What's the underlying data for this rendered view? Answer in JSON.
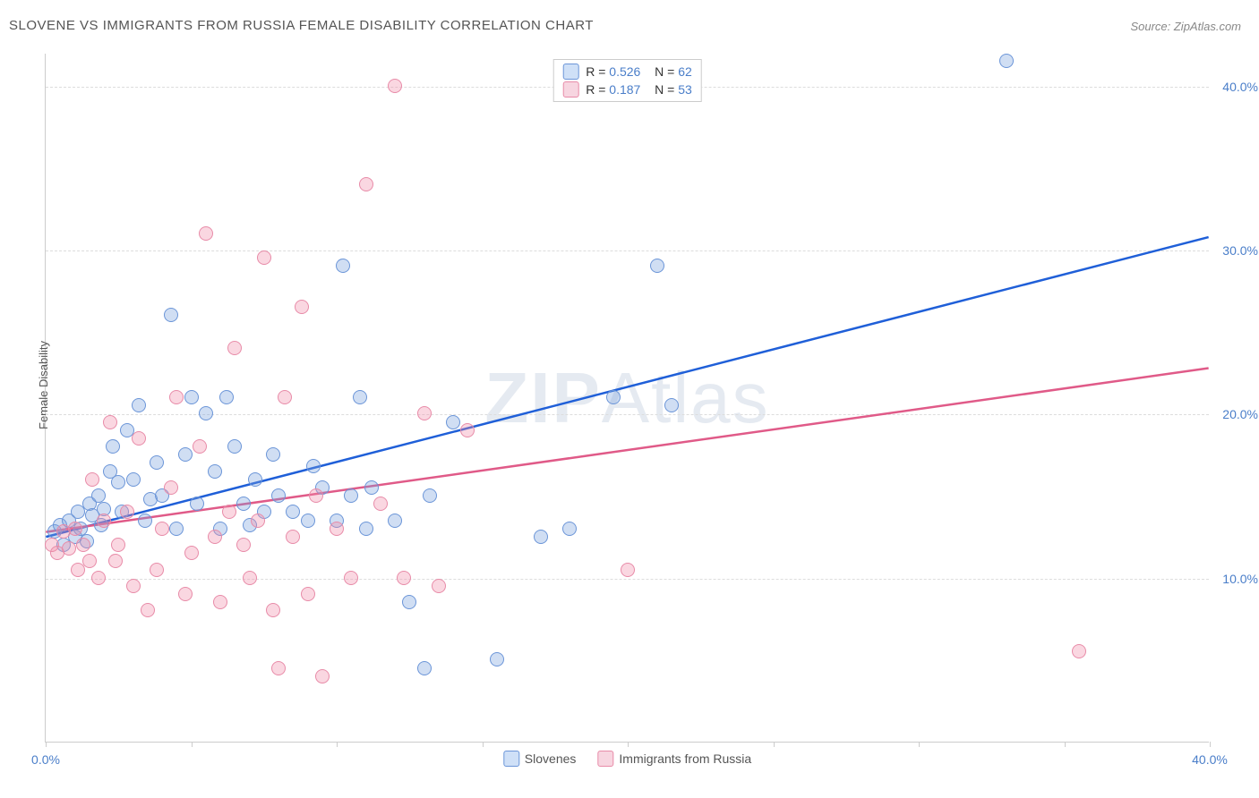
{
  "title": "SLOVENE VS IMMIGRANTS FROM RUSSIA FEMALE DISABILITY CORRELATION CHART",
  "source": "Source: ZipAtlas.com",
  "watermark": "ZIPAtlas",
  "y_axis": {
    "label": "Female Disability"
  },
  "chart": {
    "type": "scatter",
    "xlim": [
      0,
      40
    ],
    "ylim": [
      0,
      42
    ],
    "x_ticks": [
      0,
      5,
      10,
      15,
      20,
      25,
      30,
      35,
      40
    ],
    "x_tick_labels": {
      "0": "0.0%",
      "40": "40.0%"
    },
    "y_gridlines": [
      10,
      20,
      30,
      40
    ],
    "y_tick_labels": {
      "10": "10.0%",
      "20": "20.0%",
      "30": "30.0%",
      "40": "40.0%"
    },
    "background_color": "#ffffff",
    "grid_color": "#dddddd",
    "axis_color": "#cccccc",
    "tick_label_color": "#4a7ec9",
    "marker_radius": 8,
    "trend_line_width": 2.5
  },
  "series": [
    {
      "name": "Slovenes",
      "fill_color": "rgba(120,160,220,0.35)",
      "stroke_color": "#6b95d8",
      "swatch_fill": "#cfe0f7",
      "swatch_border": "#6b95d8",
      "trend_color": "#1f5fd8",
      "R": "0.526",
      "N": "62",
      "trend": {
        "x1": 0,
        "y1": 12.5,
        "x2": 40,
        "y2": 30.8
      },
      "points": [
        [
          0.3,
          12.8
        ],
        [
          0.5,
          13.2
        ],
        [
          0.6,
          12.0
        ],
        [
          0.8,
          13.5
        ],
        [
          1.0,
          12.5
        ],
        [
          1.1,
          14.0
        ],
        [
          1.2,
          13.0
        ],
        [
          1.4,
          12.2
        ],
        [
          1.5,
          14.5
        ],
        [
          1.6,
          13.8
        ],
        [
          1.8,
          15.0
        ],
        [
          1.9,
          13.2
        ],
        [
          2.0,
          14.2
        ],
        [
          2.2,
          16.5
        ],
        [
          2.3,
          18.0
        ],
        [
          2.5,
          15.8
        ],
        [
          2.6,
          14.0
        ],
        [
          2.8,
          19.0
        ],
        [
          3.0,
          16.0
        ],
        [
          3.2,
          20.5
        ],
        [
          3.4,
          13.5
        ],
        [
          3.6,
          14.8
        ],
        [
          3.8,
          17.0
        ],
        [
          4.0,
          15.0
        ],
        [
          4.3,
          26.0
        ],
        [
          4.5,
          13.0
        ],
        [
          4.8,
          17.5
        ],
        [
          5.0,
          21.0
        ],
        [
          5.2,
          14.5
        ],
        [
          5.5,
          20.0
        ],
        [
          5.8,
          16.5
        ],
        [
          6.0,
          13.0
        ],
        [
          6.2,
          21.0
        ],
        [
          6.5,
          18.0
        ],
        [
          7.0,
          13.2
        ],
        [
          7.2,
          16.0
        ],
        [
          7.5,
          14.0
        ],
        [
          7.8,
          17.5
        ],
        [
          8.0,
          15.0
        ],
        [
          8.5,
          14.0
        ],
        [
          9.0,
          13.5
        ],
        [
          9.2,
          16.8
        ],
        [
          9.5,
          15.5
        ],
        [
          10.0,
          13.5
        ],
        [
          10.2,
          29.0
        ],
        [
          10.5,
          15.0
        ],
        [
          11.0,
          13.0
        ],
        [
          11.2,
          15.5
        ],
        [
          12.0,
          13.5
        ],
        [
          12.5,
          8.5
        ],
        [
          13.0,
          4.5
        ],
        [
          13.2,
          15.0
        ],
        [
          14.0,
          19.5
        ],
        [
          15.5,
          5.0
        ],
        [
          17.0,
          12.5
        ],
        [
          18.0,
          13.0
        ],
        [
          19.5,
          21.0
        ],
        [
          21.0,
          29.0
        ],
        [
          21.5,
          20.5
        ],
        [
          33.0,
          41.5
        ],
        [
          10.8,
          21.0
        ],
        [
          6.8,
          14.5
        ]
      ]
    },
    {
      "name": "Immigrants from Russia",
      "fill_color": "rgba(240,140,170,0.35)",
      "stroke_color": "#e88ba8",
      "swatch_fill": "#f7d5e0",
      "swatch_border": "#e88ba8",
      "trend_color": "#e05a88",
      "R": "0.187",
      "N": "53",
      "trend": {
        "x1": 0,
        "y1": 12.8,
        "x2": 40,
        "y2": 22.8
      },
      "points": [
        [
          0.2,
          12.0
        ],
        [
          0.4,
          11.5
        ],
        [
          0.6,
          12.8
        ],
        [
          0.8,
          11.8
        ],
        [
          1.0,
          13.0
        ],
        [
          1.1,
          10.5
        ],
        [
          1.3,
          12.0
        ],
        [
          1.5,
          11.0
        ],
        [
          1.6,
          16.0
        ],
        [
          1.8,
          10.0
        ],
        [
          2.0,
          13.5
        ],
        [
          2.2,
          19.5
        ],
        [
          2.4,
          11.0
        ],
        [
          2.5,
          12.0
        ],
        [
          2.8,
          14.0
        ],
        [
          3.0,
          9.5
        ],
        [
          3.2,
          18.5
        ],
        [
          3.5,
          8.0
        ],
        [
          3.8,
          10.5
        ],
        [
          4.0,
          13.0
        ],
        [
          4.3,
          15.5
        ],
        [
          4.5,
          21.0
        ],
        [
          4.8,
          9.0
        ],
        [
          5.0,
          11.5
        ],
        [
          5.3,
          18.0
        ],
        [
          5.5,
          31.0
        ],
        [
          5.8,
          12.5
        ],
        [
          6.0,
          8.5
        ],
        [
          6.3,
          14.0
        ],
        [
          6.5,
          24.0
        ],
        [
          7.0,
          10.0
        ],
        [
          7.3,
          13.5
        ],
        [
          7.5,
          29.5
        ],
        [
          7.8,
          8.0
        ],
        [
          8.2,
          21.0
        ],
        [
          8.5,
          12.5
        ],
        [
          8.8,
          26.5
        ],
        [
          9.0,
          9.0
        ],
        [
          9.3,
          15.0
        ],
        [
          9.5,
          4.0
        ],
        [
          10.0,
          13.0
        ],
        [
          10.5,
          10.0
        ],
        [
          11.0,
          34.0
        ],
        [
          11.5,
          14.5
        ],
        [
          12.0,
          40.0
        ],
        [
          12.3,
          10.0
        ],
        [
          13.0,
          20.0
        ],
        [
          13.5,
          9.5
        ],
        [
          14.5,
          19.0
        ],
        [
          20.0,
          10.5
        ],
        [
          35.5,
          5.5
        ],
        [
          8.0,
          4.5
        ],
        [
          6.8,
          12.0
        ]
      ]
    }
  ],
  "legend_bottom": [
    {
      "label": "Slovenes"
    },
    {
      "label": "Immigrants from Russia"
    }
  ]
}
